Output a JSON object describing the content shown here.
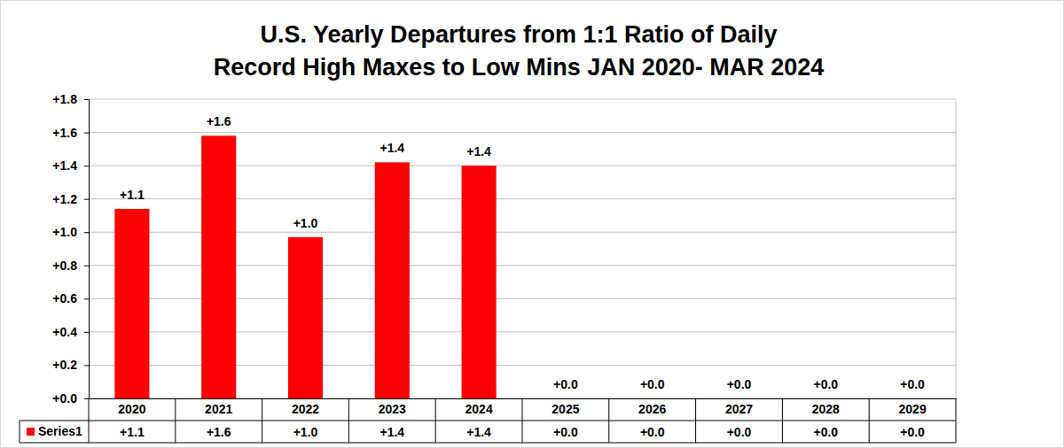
{
  "chart_data": {
    "type": "bar",
    "title": "U.S. Yearly Departures from 1:1 Ratio of Daily\nRecord High Maxes to Low Mins JAN 2020- MAR 2024",
    "categories": [
      "2020",
      "2021",
      "2022",
      "2023",
      "2024",
      "2025",
      "2026",
      "2027",
      "2028",
      "2029"
    ],
    "series": [
      {
        "name": "Series1",
        "color": "#ff0000",
        "values": [
          1.14,
          1.58,
          0.97,
          1.42,
          1.4,
          0,
          0,
          0,
          0,
          0
        ],
        "value_labels": [
          "+1.1",
          "+1.6",
          "+1.0",
          "+1.4",
          "+1.4",
          "+0.0",
          "+0.0",
          "+0.0",
          "+0.0",
          "+0.0"
        ]
      }
    ],
    "ylim": [
      0,
      1.8
    ],
    "yticks": [
      {
        "value": 0,
        "label": "+0.0"
      },
      {
        "value": 0.2,
        "label": "+0.2"
      },
      {
        "value": 0.4,
        "label": "+0.4"
      },
      {
        "value": 0.6,
        "label": "+0.6"
      },
      {
        "value": 0.8,
        "label": "+0.8"
      },
      {
        "value": 1.0,
        "label": "+1.0"
      },
      {
        "value": 1.2,
        "label": "+1.2"
      },
      {
        "value": 1.4,
        "label": "+1.4"
      },
      {
        "value": 1.6,
        "label": "+1.6"
      },
      {
        "value": 1.8,
        "label": "+1.8"
      }
    ],
    "grid": true,
    "data_labels": true
  }
}
